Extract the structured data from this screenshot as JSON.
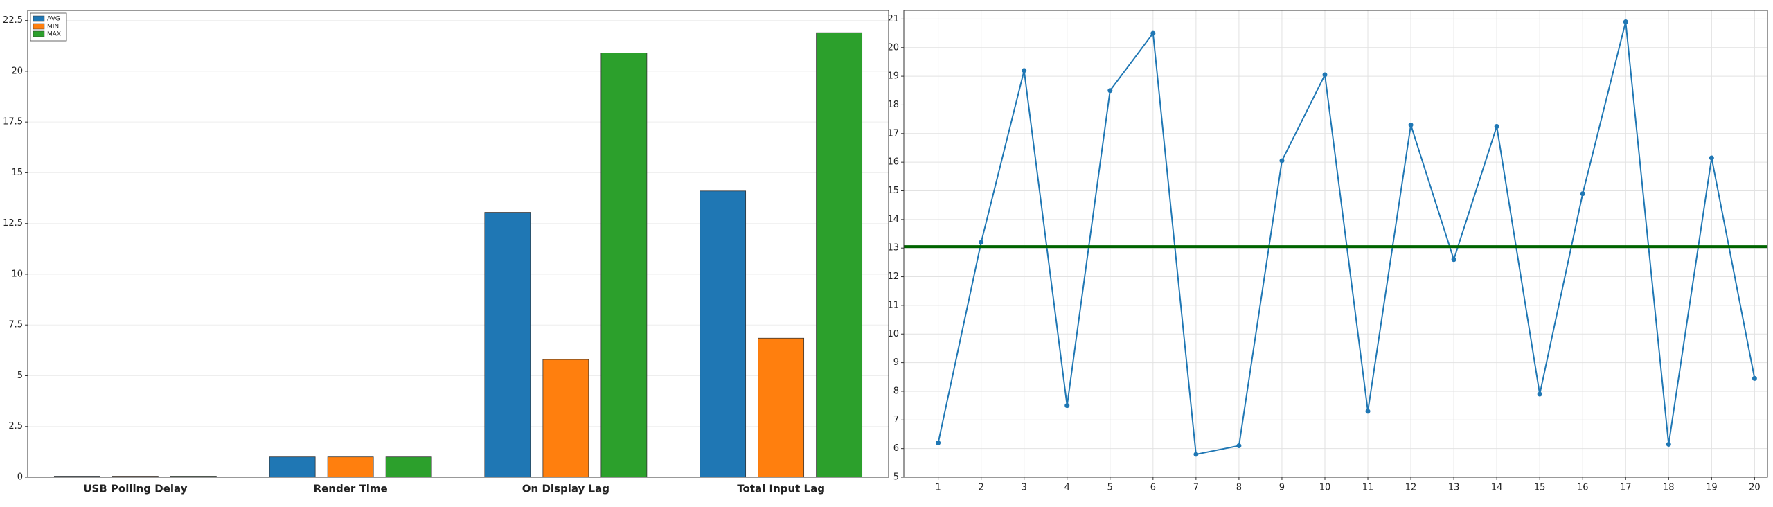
{
  "chart_data": [
    {
      "type": "bar",
      "categories": [
        "USB Polling Delay",
        "Render Time",
        "On Display Lag",
        "Total Input Lag"
      ],
      "series": [
        {
          "name": "AVG",
          "color": "#1f77b4",
          "values": [
            0.05,
            1,
            13.05,
            14.1
          ]
        },
        {
          "name": "MIN",
          "color": "#ff7f0e",
          "values": [
            0.05,
            1,
            5.8,
            6.85
          ]
        },
        {
          "name": "MAX",
          "color": "#2ca02c",
          "values": [
            0.05,
            1,
            20.9,
            21.9
          ]
        }
      ],
      "ylim": [
        0,
        23
      ],
      "yticks": [
        0,
        2.5,
        5,
        7.5,
        10,
        12.5,
        15,
        17.5,
        20,
        22.5
      ],
      "grid": true,
      "legend": "top-left"
    },
    {
      "type": "line",
      "x": [
        1,
        2,
        3,
        4,
        5,
        6,
        7,
        8,
        9,
        10,
        11,
        12,
        13,
        14,
        15,
        16,
        17,
        18,
        19,
        20
      ],
      "series": [
        {
          "color": "#1f77b4",
          "values": [
            6.2,
            13.2,
            19.2,
            7.5,
            18.5,
            20.5,
            5.8,
            6.1,
            16.05,
            19.05,
            7.3,
            17.3,
            12.6,
            17.25,
            7.9,
            14.9,
            20.9,
            6.15,
            16.15,
            8.45
          ]
        }
      ],
      "reference_line": {
        "value": 13.05,
        "color": "#006400"
      },
      "xlim": [
        0.2,
        20.3
      ],
      "xticks": [
        1,
        2,
        3,
        4,
        5,
        6,
        7,
        8,
        9,
        10,
        11,
        12,
        13,
        14,
        15,
        16,
        17,
        18,
        19,
        20
      ],
      "ylim": [
        5,
        21.3
      ],
      "yticks": [
        5,
        6,
        7,
        8,
        9,
        10,
        11,
        12,
        13,
        14,
        15,
        16,
        17,
        18,
        19,
        20,
        21
      ],
      "grid": true
    }
  ]
}
